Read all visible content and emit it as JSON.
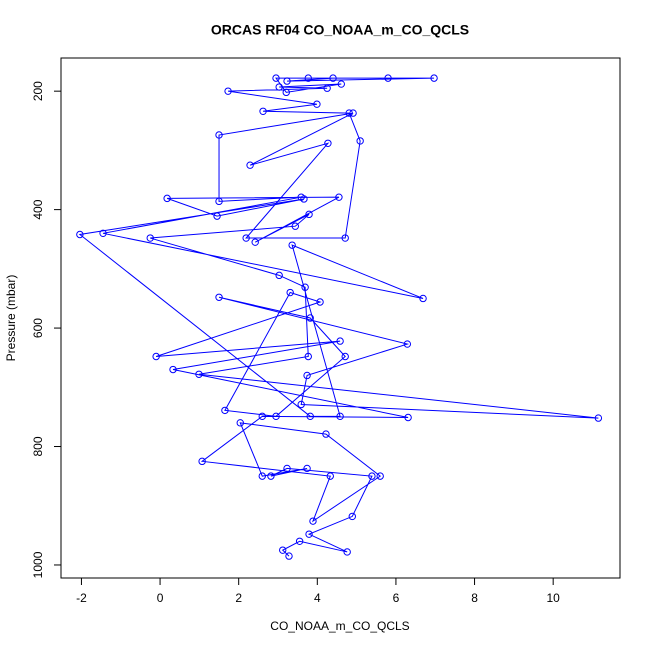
{
  "chart_data": {
    "type": "line",
    "title": "ORCAS RF04 CO_NOAA_m_CO_QCLS",
    "x_label": "CO_NOAA_m_CO_QCLS",
    "y_label": "Pressure (mbar)",
    "x": [
      3.28,
      3.12,
      3.55,
      4.76,
      3.79,
      4.89,
      5.39,
      3.23,
      2.82,
      3.74,
      2.6,
      2.04,
      4.22,
      5.6,
      3.89,
      4.33,
      1.07,
      2.6,
      6.31,
      0.33,
      4.58,
      -0.1,
      4.07,
      3.31,
      1.65,
      2.95,
      4.71,
      3.82,
      1.5,
      6.29,
      3.74,
      3.59,
      11.15,
      0.99,
      3.77,
      3.69,
      3.03,
      -0.25,
      3.44,
      3.79,
      2.42,
      4.55,
      0.18,
      1.45,
      3.66,
      -2.04,
      3.82,
      4.58,
      3.36,
      6.69,
      -1.45,
      3.59,
      1.5,
      1.5,
      4.91,
      2.29,
      4.27,
      2.19,
      4.71,
      5.09,
      4.81,
      2.62,
      3.99,
      1.73,
      4.25,
      3.03,
      4.61,
      3.21,
      2.95,
      6.97,
      3.23,
      4.4,
      5.8,
      3.77
    ],
    "series": [
      {
        "color": "#0000ff",
        "values": [
          985,
          975,
          960,
          978,
          948,
          918,
          850,
          837,
          850,
          837,
          850,
          760,
          779,
          850,
          926,
          850,
          825,
          749,
          751,
          670,
          622,
          648,
          556,
          540,
          739,
          749,
          648,
          583,
          548,
          627,
          680,
          729,
          752,
          678,
          648,
          531,
          511,
          448,
          428,
          408,
          455,
          379,
          381,
          411,
          382,
          442,
          749,
          749,
          460,
          550,
          440,
          379,
          386,
          274,
          237,
          325,
          288,
          448,
          448,
          284,
          237,
          234,
          222,
          200,
          195,
          193,
          188,
          202,
          178,
          178,
          183,
          178,
          178,
          178
        ]
      }
    ],
    "markers": true,
    "xlim": [
      -2.52,
      11.7
    ],
    "xticks": [
      -2,
      0,
      2,
      4,
      6,
      8,
      10
    ],
    "ylim": [
      1022,
      144
    ],
    "yticks": [
      200,
      400,
      600,
      800,
      1000
    ]
  }
}
